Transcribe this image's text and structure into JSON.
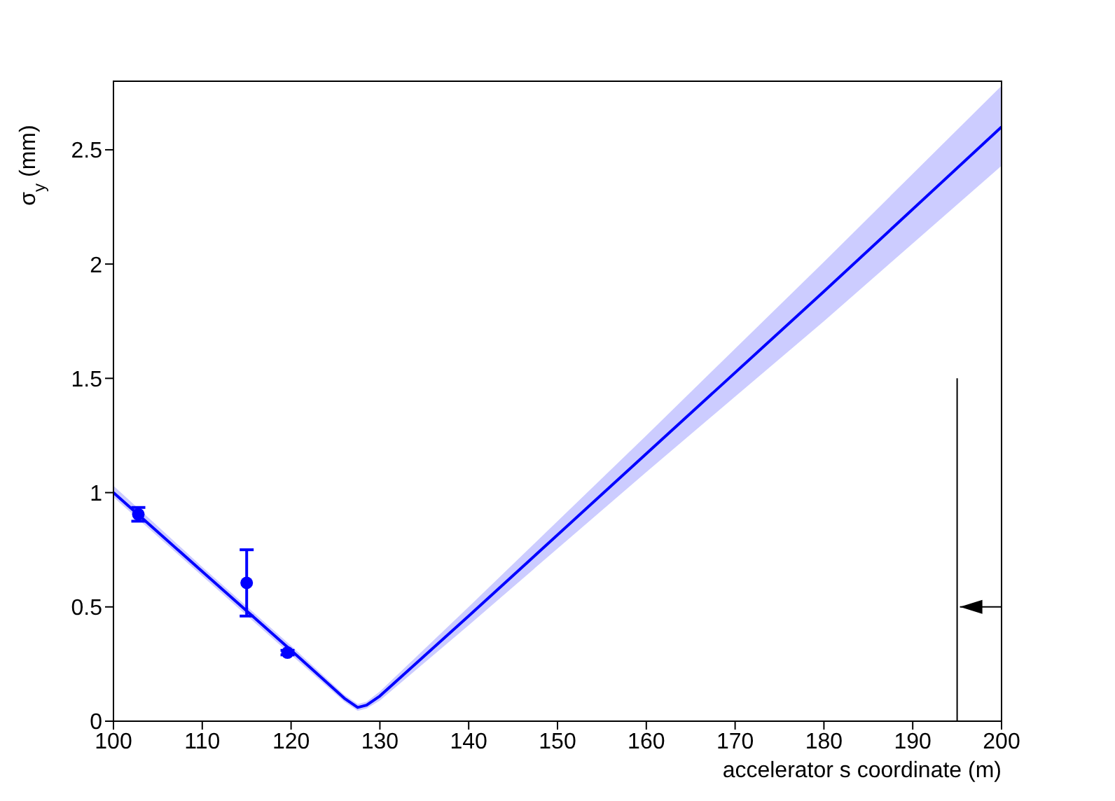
{
  "chart_data": {
    "type": "line",
    "xlabel": "accelerator s coordinate (m)",
    "ylabel": "σ$_{y}$ (mm)",
    "xlim": [
      100,
      200
    ],
    "xticks": [
      100,
      110,
      120,
      130,
      140,
      150,
      160,
      170,
      180,
      190,
      200
    ],
    "ylim": [
      0,
      2.8
    ],
    "yticks": [
      0,
      0.5,
      1,
      1.5,
      2,
      2.5
    ],
    "grid": false,
    "legend": false,
    "series": [
      {
        "color": "#0000ff",
        "x": [
          100,
          110,
          120,
          126,
          127.5,
          128.5,
          130,
          140,
          160,
          180,
          200
        ],
        "values": [
          1.0,
          0.655,
          0.31,
          0.1,
          0.06,
          0.07,
          0.11,
          0.46,
          1.17,
          1.88,
          2.6
        ],
        "lower": [
          0.98,
          0.635,
          0.29,
          0.085,
          0.045,
          0.055,
          0.09,
          0.42,
          1.09,
          1.75,
          2.43
        ],
        "upper": [
          1.03,
          0.675,
          0.33,
          0.115,
          0.075,
          0.085,
          0.13,
          0.5,
          1.25,
          2.01,
          2.78
        ]
      },
      {
        "type": "scatter",
        "color": "#0000ff",
        "marker": "circle",
        "x": [
          102.8,
          115,
          119.6
        ],
        "values": [
          0.905,
          0.605,
          0.3
        ],
        "errors": [
          0.03,
          [
            0.46,
            0.75
          ],
          0.01
        ]
      }
    ],
    "ref_lines": [
      {
        "axis": "x",
        "value": 195
      }
    ]
  }
}
